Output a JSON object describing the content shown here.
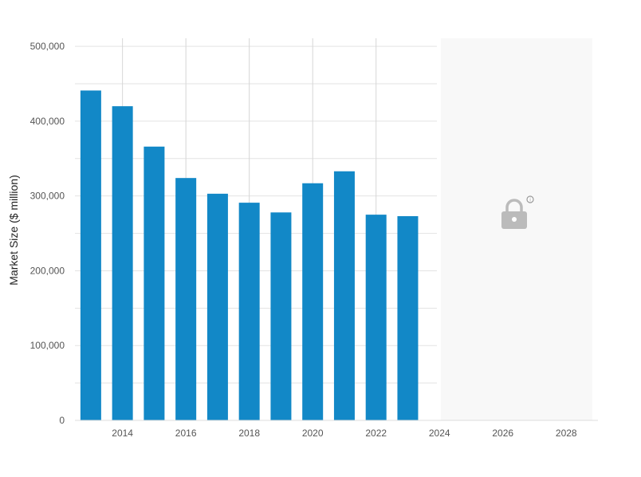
{
  "chart_data": {
    "type": "bar",
    "ylabel": "Market Size ($ million)",
    "xlabel": "",
    "title": "",
    "ylim": [
      0,
      530000
    ],
    "yticks": [
      0,
      100000,
      200000,
      300000,
      400000,
      500000
    ],
    "ytick_labels": [
      "0",
      "100,000",
      "200,000",
      "300,000",
      "400,000",
      "500,000"
    ],
    "xlim": [
      2012.5,
      2029.0
    ],
    "xticks": [
      2014,
      2016,
      2018,
      2020,
      2022,
      2024,
      2026,
      2028
    ],
    "xtick_labels": [
      "2014",
      "2016",
      "2018",
      "2020",
      "2022",
      "2024",
      "2026",
      "2028"
    ],
    "categories": [
      2013,
      2014,
      2015,
      2016,
      2017,
      2018,
      2019,
      2020,
      2021,
      2022,
      2023
    ],
    "values": [
      441000,
      420000,
      366000,
      324000,
      303000,
      291000,
      278000,
      317000,
      333000,
      275000,
      273000
    ],
    "locked_region": [
      2024,
      2028
    ],
    "locked_icon": "lock-icon",
    "grid": true,
    "colors": {
      "bar": "#1288c7",
      "grid": "#e3e3e3",
      "major_vgrid": "#d6d6d6",
      "locked_bg": "#f8f8f8",
      "lock": "#bbbbbb"
    }
  }
}
